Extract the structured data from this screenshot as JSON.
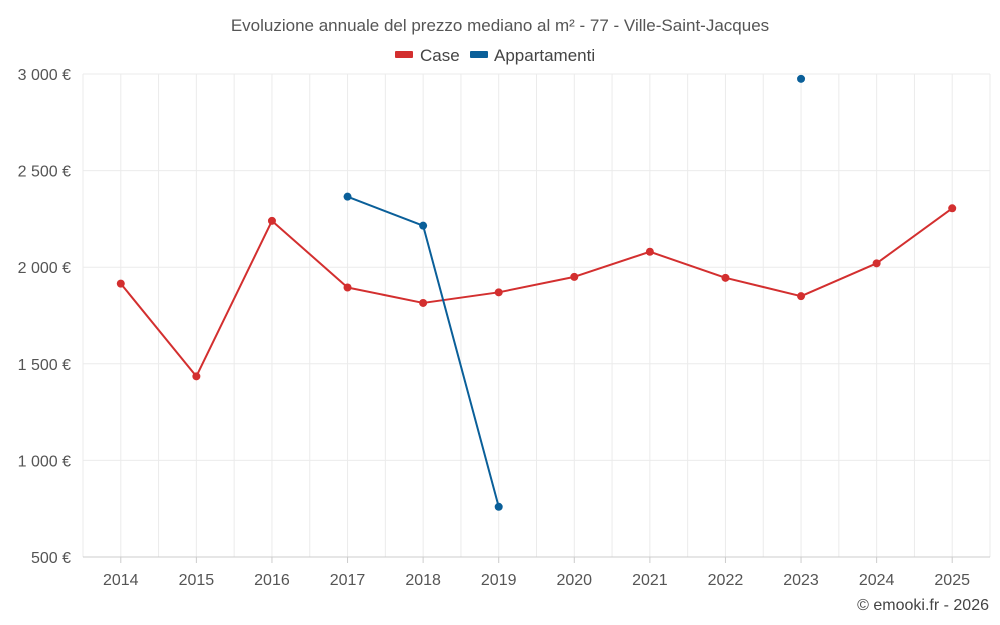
{
  "chart_data": {
    "type": "line",
    "title": "Evoluzione annuale del prezzo mediano al m² - 77 - Ville-Saint-Jacques",
    "xlabel": "",
    "ylabel": "",
    "categories": [
      "2014",
      "2015",
      "2016",
      "2017",
      "2018",
      "2019",
      "2020",
      "2021",
      "2022",
      "2023",
      "2024",
      "2025"
    ],
    "ylim": [
      500,
      3000
    ],
    "yticks": [
      500,
      1000,
      1500,
      2000,
      2500,
      3000
    ],
    "ytick_labels": [
      "500 €",
      "1 000 €",
      "1 500 €",
      "2 000 €",
      "2 500 €",
      "3 000 €"
    ],
    "grid": true,
    "legend_position": "top-center",
    "series": [
      {
        "name": "Case",
        "color": "#d32f2f",
        "values": [
          1915,
          1435,
          2240,
          1895,
          1815,
          1870,
          1950,
          2080,
          1945,
          1850,
          2020,
          2305
        ]
      },
      {
        "name": "Appartamenti",
        "color": "#0a5f99",
        "values": [
          null,
          null,
          null,
          2365,
          2215,
          760,
          null,
          null,
          null,
          2975,
          null,
          null
        ]
      }
    ]
  },
  "credit": "© emooki.fr - 2026"
}
